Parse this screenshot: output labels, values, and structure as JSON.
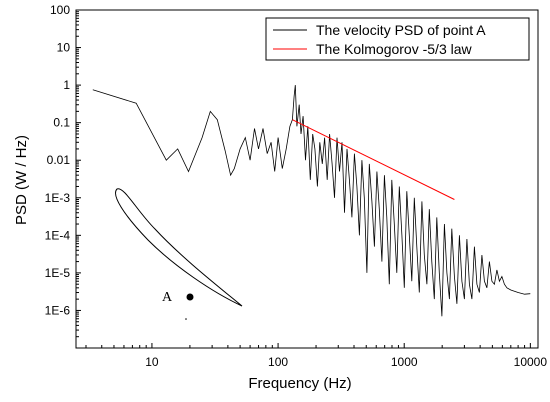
{
  "chart_data": {
    "type": "line",
    "title": "",
    "xlabel": "Frequency   (Hz)",
    "ylabel": "PSD   (W / Hz)",
    "x_scale": "log",
    "y_scale": "log",
    "xlim": [
      2.5,
      11500
    ],
    "ylim": [
      1e-07,
      100
    ],
    "x_ticks": [
      {
        "value": 10,
        "label": "10"
      },
      {
        "value": 100,
        "label": "100"
      },
      {
        "value": 1000,
        "label": "1000"
      },
      {
        "value": 10000,
        "label": "10000"
      }
    ],
    "y_ticks": [
      {
        "value": 100,
        "label": "100"
      },
      {
        "value": 10,
        "label": "10"
      },
      {
        "value": 1,
        "label": "1"
      },
      {
        "value": 0.1,
        "label": "0.1"
      },
      {
        "value": 0.01,
        "label": "0.01"
      },
      {
        "value": 0.001,
        "label": "1E-3"
      },
      {
        "value": 0.0001,
        "label": "1E-4"
      },
      {
        "value": 1e-05,
        "label": "1E-5"
      },
      {
        "value": 1e-06,
        "label": "1E-6"
      }
    ],
    "grid": false,
    "legend_position": "top-right",
    "series": [
      {
        "name": "The velocity PSD of point A",
        "color": "#000000",
        "points": [
          [
            3.4,
            0.75
          ],
          [
            7.5,
            0.33
          ],
          [
            13,
            0.01
          ],
          [
            16,
            0.02
          ],
          [
            19.5,
            0.005
          ],
          [
            25,
            0.04
          ],
          [
            29,
            0.2
          ],
          [
            33,
            0.12
          ],
          [
            38,
            0.018
          ],
          [
            42,
            0.004
          ],
          [
            45,
            0.006
          ],
          [
            50,
            0.02
          ],
          [
            55,
            0.04
          ],
          [
            60,
            0.01
          ],
          [
            65,
            0.07
          ],
          [
            70,
            0.02
          ],
          [
            76,
            0.07
          ],
          [
            82,
            0.015
          ],
          [
            88,
            0.03
          ],
          [
            94,
            0.005
          ],
          [
            100,
            0.04
          ],
          [
            108,
            0.006
          ],
          [
            116,
            0.02
          ],
          [
            124,
            0.08
          ],
          [
            130,
            0.12
          ],
          [
            134,
            0.5
          ],
          [
            137,
            1.0
          ],
          [
            141,
            0.08
          ],
          [
            147,
            0.3
          ],
          [
            152,
            0.05
          ],
          [
            158,
            0.15
          ],
          [
            165,
            0.01
          ],
          [
            172,
            0.08
          ],
          [
            180,
            0.003
          ],
          [
            188,
            0.05
          ],
          [
            196,
            0.02
          ],
          [
            205,
            0.002
          ],
          [
            214,
            0.03
          ],
          [
            224,
            0.008
          ],
          [
            234,
            0.04
          ],
          [
            245,
            0.003
          ],
          [
            256,
            0.05
          ],
          [
            268,
            0.008
          ],
          [
            280,
            0.001
          ],
          [
            293,
            0.04
          ],
          [
            307,
            0.005
          ],
          [
            321,
            0.03
          ],
          [
            336,
            0.0004
          ],
          [
            352,
            0.02
          ],
          [
            368,
            0.003
          ],
          [
            385,
            0.0003
          ],
          [
            403,
            0.015
          ],
          [
            422,
            0.002
          ],
          [
            441,
            0.0001
          ],
          [
            462,
            0.01
          ],
          [
            483,
            0.001
          ],
          [
            506,
            1e-05
          ],
          [
            529,
            0.008
          ],
          [
            554,
            0.0008
          ],
          [
            580,
            5e-05
          ],
          [
            607,
            0.005
          ],
          [
            635,
            0.0005
          ],
          [
            665,
            2e-05
          ],
          [
            696,
            0.004
          ],
          [
            728,
            0.0003
          ],
          [
            762,
            5e-06
          ],
          [
            798,
            0.003
          ],
          [
            835,
            0.0002
          ],
          [
            874,
            1e-05
          ],
          [
            915,
            0.002
          ],
          [
            958,
            0.0001
          ],
          [
            1002,
            4e-06
          ],
          [
            1049,
            0.0015
          ],
          [
            1098,
            0.0001
          ],
          [
            1149,
            6e-06
          ],
          [
            1203,
            0.001
          ],
          [
            1259,
            5e-05
          ],
          [
            1318,
            3e-06
          ],
          [
            1380,
            0.0008
          ],
          [
            1444,
            3e-05
          ],
          [
            1512,
            5e-06
          ],
          [
            1582,
            0.0005
          ],
          [
            1656,
            2e-05
          ],
          [
            1733,
            2e-06
          ],
          [
            1814,
            0.0003
          ],
          [
            1899,
            1e-05
          ],
          [
            1988,
            7e-07
          ],
          [
            2081,
            0.0002
          ],
          [
            2178,
            1e-05
          ],
          [
            2280,
            2e-06
          ],
          [
            2386,
            0.00015
          ],
          [
            2498,
            8e-06
          ],
          [
            2615,
            1.5e-06
          ],
          [
            2737,
            0.0001
          ],
          [
            2865,
            6e-06
          ],
          [
            2999,
            2e-06
          ],
          [
            3139,
            8e-05
          ],
          [
            3286,
            5e-06
          ],
          [
            3439,
            2e-06
          ],
          [
            3600,
            5e-05
          ],
          [
            3768,
            5e-06
          ],
          [
            3944,
            3e-06
          ],
          [
            4129,
            3e-05
          ],
          [
            4322,
            6e-06
          ],
          [
            4523,
            4e-06
          ],
          [
            4735,
            2e-05
          ],
          [
            4956,
            6e-06
          ],
          [
            5188,
            5e-06
          ],
          [
            5430,
            1.2e-05
          ],
          [
            5684,
            6e-06
          ],
          [
            5950,
            8e-06
          ],
          [
            6228,
            5e-06
          ],
          [
            6519,
            4e-06
          ],
          [
            7000,
            3.5e-06
          ],
          [
            8000,
            3e-06
          ],
          [
            9000,
            2.7e-06
          ],
          [
            10000,
            2.8e-06
          ]
        ]
      },
      {
        "name": "The Kolmogorov -5/3 law",
        "color": "#ff0000",
        "points": [
          [
            130,
            0.12
          ],
          [
            2500,
            0.0009
          ]
        ]
      }
    ],
    "annotations": [
      {
        "label": "A"
      }
    ]
  }
}
